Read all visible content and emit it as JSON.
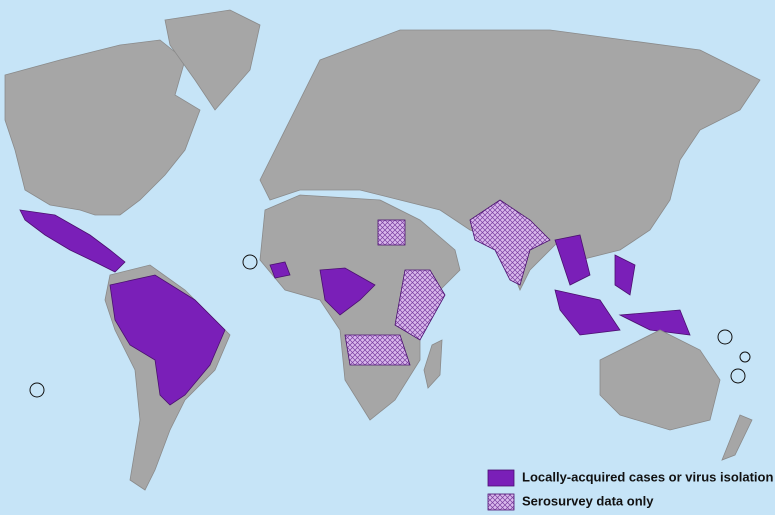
{
  "legend": {
    "items": [
      {
        "label": "Locally-acquired cases or virus isolation"
      },
      {
        "label": "Serosurvey data only"
      }
    ]
  }
}
